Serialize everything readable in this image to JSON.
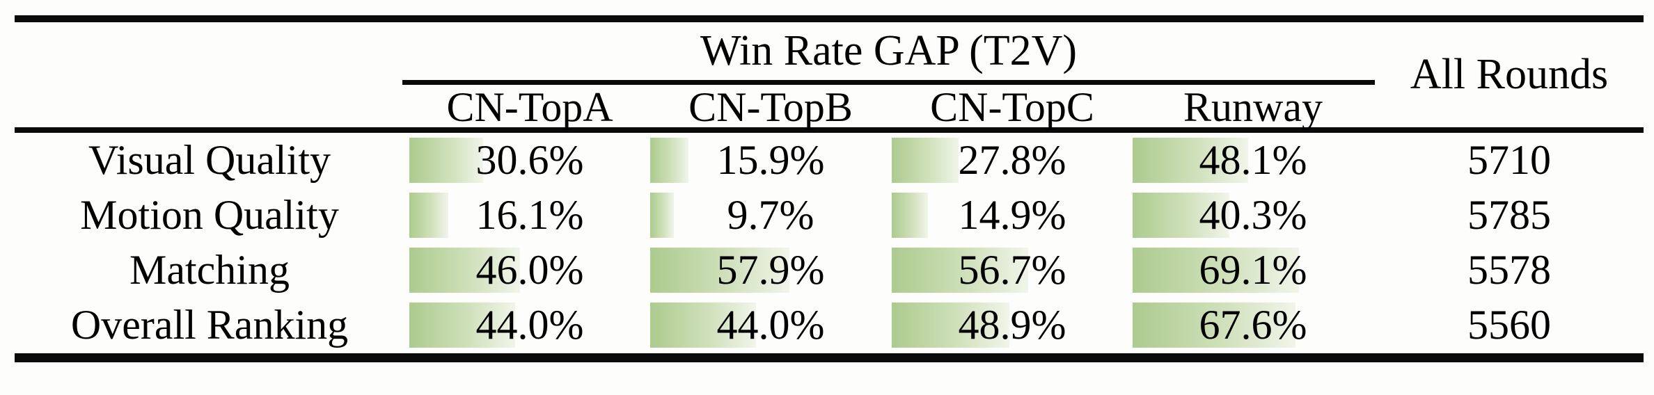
{
  "table": {
    "group_header": "Win Rate GAP (T2V)",
    "all_rounds_header": "All Rounds",
    "columns": [
      "CN-TopA",
      "CN-TopB",
      "CN-TopC",
      "Runway"
    ],
    "rows": [
      {
        "label": "Visual Quality",
        "cells": [
          {
            "text": "30.6%",
            "value": 30.6
          },
          {
            "text": "15.9%",
            "value": 15.9
          },
          {
            "text": "27.8%",
            "value": 27.8
          },
          {
            "text": "48.1%",
            "value": 48.1
          }
        ],
        "all_rounds": "5710"
      },
      {
        "label": "Motion Quality",
        "cells": [
          {
            "text": "16.1%",
            "value": 16.1
          },
          {
            "text": "9.7%",
            "value": 9.7
          },
          {
            "text": "14.9%",
            "value": 14.9
          },
          {
            "text": "40.3%",
            "value": 40.3
          }
        ],
        "all_rounds": "5785"
      },
      {
        "label": "Matching",
        "cells": [
          {
            "text": "46.0%",
            "value": 46.0
          },
          {
            "text": "57.9%",
            "value": 57.9
          },
          {
            "text": "56.7%",
            "value": 56.7
          },
          {
            "text": "69.1%",
            "value": 69.1
          }
        ],
        "all_rounds": "5578"
      },
      {
        "label": "Overall Ranking",
        "cells": [
          {
            "text": "44.0%",
            "value": 44.0
          },
          {
            "text": "44.0%",
            "value": 44.0
          },
          {
            "text": "48.9%",
            "value": 48.9
          },
          {
            "text": "67.6%",
            "value": 67.6
          }
        ],
        "all_rounds": "5560"
      }
    ],
    "colors": {
      "bar_start": "#accb8e",
      "bar_end": "#f1f5ea",
      "rule": "#0a0a0a",
      "text": "#000000"
    }
  }
}
